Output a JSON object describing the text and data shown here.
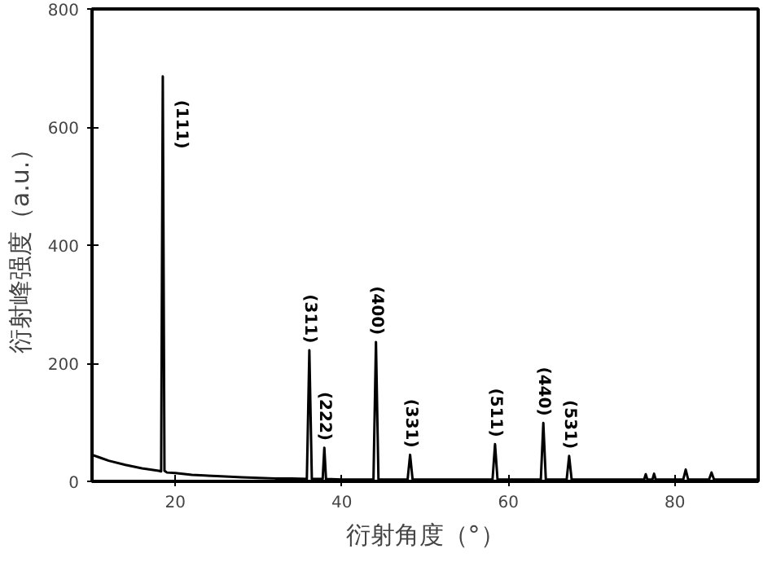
{
  "chart_data": {
    "type": "line",
    "xlabel": "衍射角度（°）",
    "ylabel": "衍射峰强度（a.u.）",
    "x": [
      10,
      11,
      12,
      14,
      16,
      18,
      18.3,
      18.5,
      18.7,
      19,
      20,
      22,
      25,
      28,
      30,
      32,
      34,
      35.8,
      36.1,
      36.4,
      37.7,
      37.9,
      38.1,
      40,
      43.8,
      44.1,
      44.4,
      46,
      47.9,
      48.2,
      48.5,
      52,
      58.1,
      58.4,
      58.7,
      61,
      63.9,
      64.2,
      64.5,
      67.0,
      67.3,
      67.6,
      72,
      76.3,
      76.5,
      76.7,
      77.3,
      77.5,
      77.7,
      81.0,
      81.3,
      81.6,
      84.1,
      84.4,
      84.7,
      88,
      90
    ],
    "series": [
      {
        "color": "#000000",
        "values": [
          45,
          40,
          35,
          28,
          22,
          18,
          17,
          686,
          18,
          15,
          14,
          11,
          9,
          7,
          6,
          5,
          5,
          4,
          222,
          4,
          4,
          57,
          4,
          3,
          3,
          236,
          3,
          3,
          3,
          45,
          3,
          3,
          3,
          63,
          3,
          3,
          3,
          99,
          3,
          3,
          43,
          3,
          3,
          3,
          12,
          3,
          3,
          13,
          3,
          3,
          20,
          3,
          3,
          15,
          3,
          3,
          3
        ]
      }
    ],
    "xlim": [
      10,
      90
    ],
    "xticks": [
      20,
      40,
      60,
      80
    ],
    "ylim": [
      0,
      800
    ],
    "yticks": [
      0,
      200,
      400,
      600,
      800
    ],
    "grid": false,
    "marker": "none",
    "line_style": "solid",
    "annotations": [
      {
        "text": "(111)",
        "x": 18.5,
        "y": 686
      },
      {
        "text": "(311)",
        "x": 36.1,
        "y": 222
      },
      {
        "text": "(222)",
        "x": 37.9,
        "y": 57
      },
      {
        "text": "(400)",
        "x": 44.1,
        "y": 236
      },
      {
        "text": "(331)",
        "x": 48.2,
        "y": 45
      },
      {
        "text": "(511)",
        "x": 58.4,
        "y": 63
      },
      {
        "text": "(440)",
        "x": 64.2,
        "y": 99
      },
      {
        "text": "(531)",
        "x": 67.3,
        "y": 43
      }
    ]
  }
}
